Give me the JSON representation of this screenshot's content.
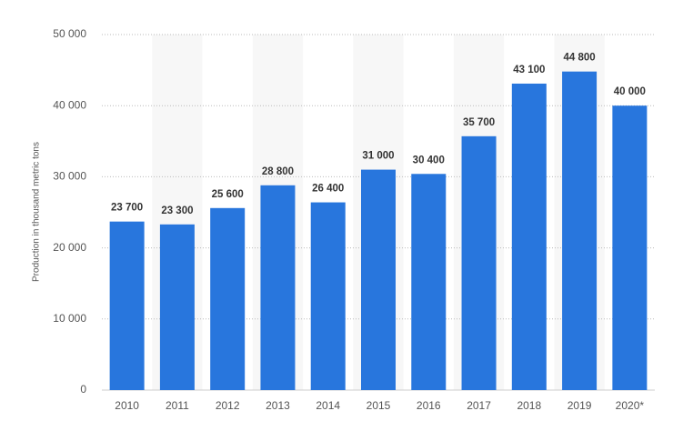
{
  "chart_data": {
    "type": "bar",
    "y_label": "Production in thousand metric tons",
    "categories": [
      "2010",
      "2011",
      "2012",
      "2013",
      "2014",
      "2015",
      "2016",
      "2017",
      "2018",
      "2019",
      "2020*"
    ],
    "values": [
      23700,
      23300,
      25600,
      28800,
      26400,
      31000,
      30400,
      35700,
      43100,
      44800,
      40000
    ],
    "value_labels": [
      "23 700",
      "23 300",
      "25 600",
      "28 800",
      "26 400",
      "31 000",
      "30 400",
      "35 700",
      "43 100",
      "44 800",
      "40 000"
    ],
    "color": "#2876dd",
    "ylim": [
      0,
      50000
    ],
    "yticks": [
      0,
      {
        "value": 10000,
        "label": "10 000"
      },
      {
        "value": 20000,
        "label": "20 000"
      },
      {
        "value": 30000,
        "label": "30 000"
      },
      {
        "value": 40000,
        "label": "40 000"
      },
      {
        "value": 50000,
        "label": "50 000"
      }
    ],
    "grid": true
  }
}
